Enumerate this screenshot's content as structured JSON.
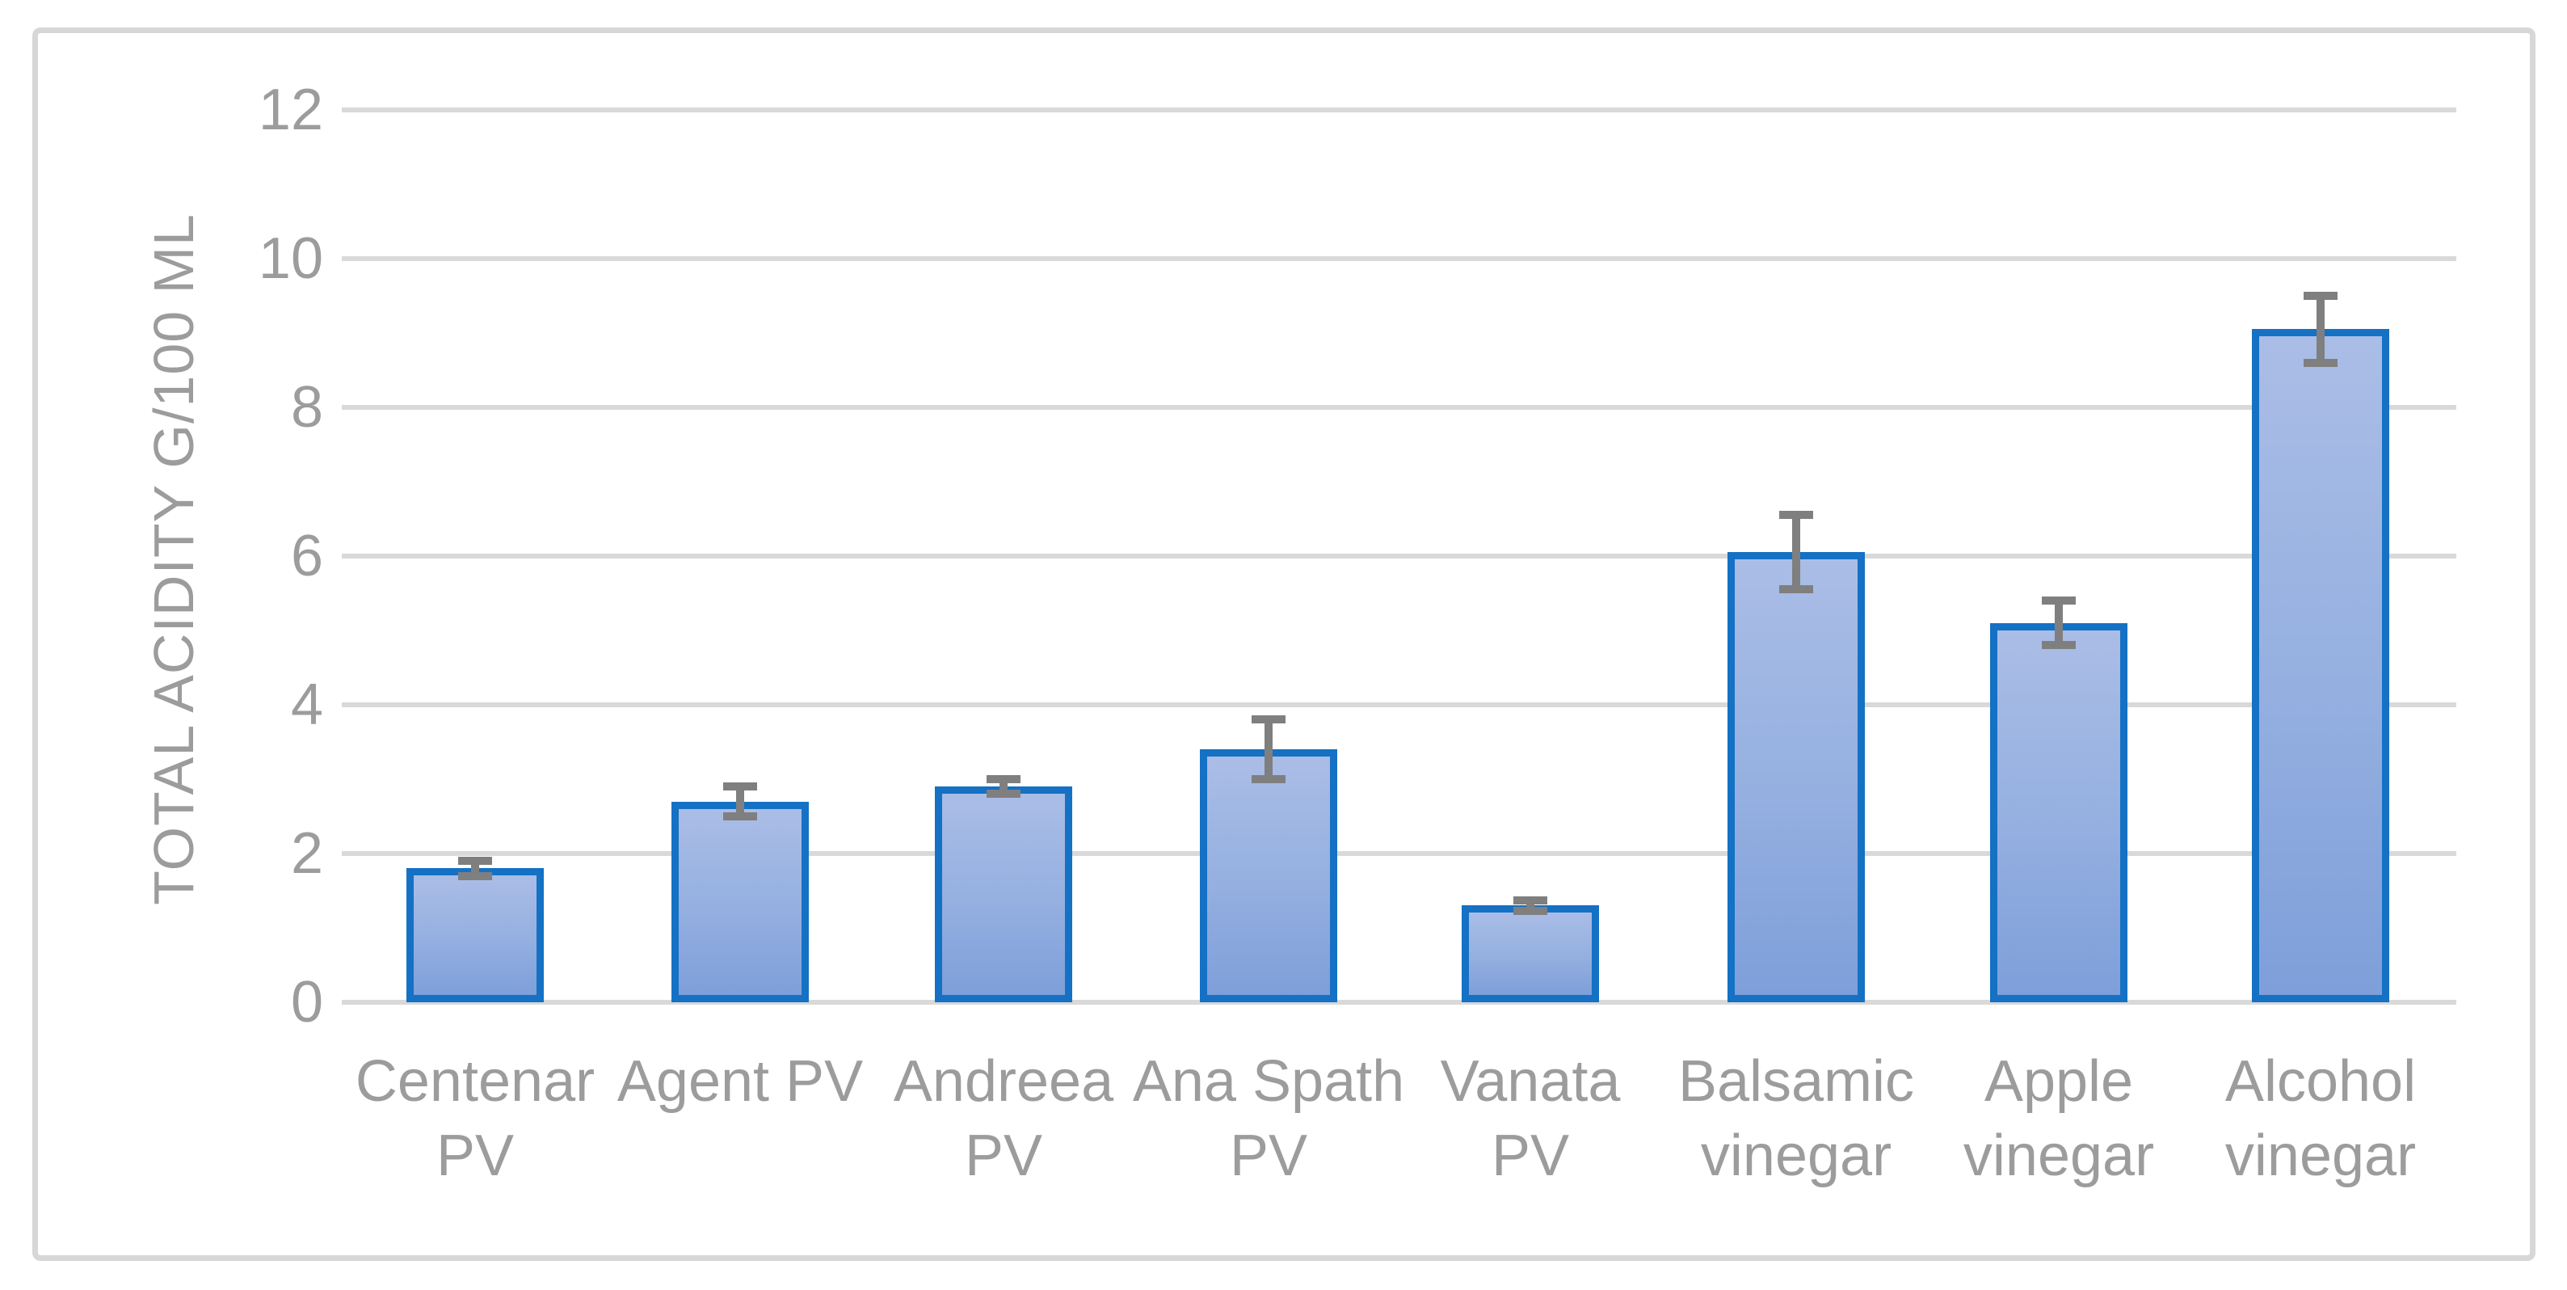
{
  "chart_data": {
    "type": "bar",
    "title": "",
    "ylabel": "TOTAL ACIDITY G/100 ML",
    "xlabel": "",
    "ylim": [
      0,
      12
    ],
    "ytick_step": 2,
    "ytick_labels": [
      "0",
      "2",
      "4",
      "6",
      "8",
      "10",
      "12"
    ],
    "grid": "horizontal",
    "legend": "none",
    "categories": [
      "Centenar PV",
      "Agent PV",
      "Andreea PV",
      "Ana Spath PV",
      "Vanata PV",
      "Balsamic vinegar",
      "Apple vinegar",
      "Alcohol vinegar"
    ],
    "category_label_lines": [
      [
        "Centenar",
        "PV"
      ],
      [
        "Agent PV"
      ],
      [
        "Andreea",
        "PV"
      ],
      [
        "Ana Spath",
        "PV"
      ],
      [
        "Vanata",
        "PV"
      ],
      [
        "Balsamic",
        "vinegar"
      ],
      [
        "Apple",
        "vinegar"
      ],
      [
        "Alcohol",
        "vinegar"
      ]
    ],
    "series": [
      {
        "name": "Total acidity",
        "values": [
          1.8,
          2.7,
          2.9,
          3.4,
          1.3,
          6.05,
          5.1,
          9.05
        ],
        "error_bars": [
          0.1,
          0.2,
          0.1,
          0.4,
          0.07,
          0.5,
          0.3,
          0.45
        ]
      }
    ],
    "colors": {
      "bar_fill_top": "#aabde6",
      "bar_fill_bottom": "#7e9fda",
      "bar_border": "#1471c4",
      "gridline": "#d9d9d9",
      "axis_text": "#9c9c9c",
      "error_bar": "#7f7f7f",
      "frame_border": "#d7d7d7",
      "background": "#ffffff"
    }
  }
}
